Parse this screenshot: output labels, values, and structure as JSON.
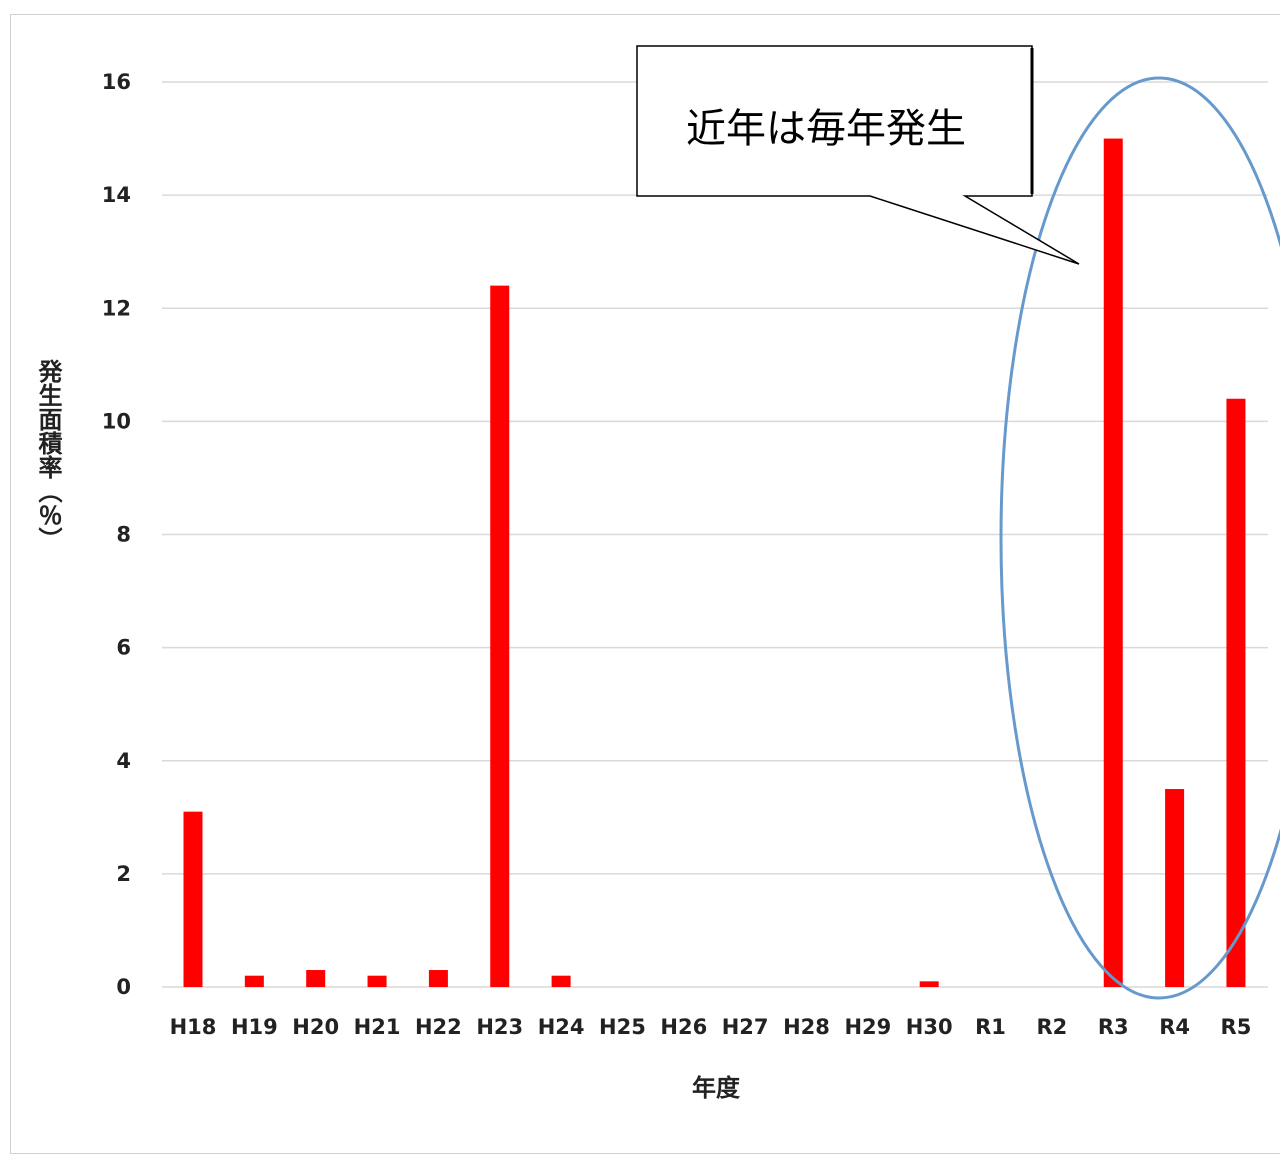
{
  "chart_data": {
    "type": "bar",
    "categories": [
      "H18",
      "H19",
      "H20",
      "H21",
      "H22",
      "H23",
      "H24",
      "H25",
      "H26",
      "H27",
      "H28",
      "H29",
      "H30",
      "R1",
      "R2",
      "R3",
      "R4",
      "R5"
    ],
    "values": [
      3.1,
      0.2,
      0.3,
      0.2,
      0.3,
      12.4,
      0.2,
      0,
      0,
      0,
      0,
      0,
      0.1,
      0,
      0,
      15.0,
      3.5,
      10.4
    ],
    "yticks": [
      0,
      2,
      4,
      6,
      8,
      10,
      12,
      14,
      16
    ],
    "ylim": [
      0,
      16
    ],
    "xlabel": "年度",
    "ylabel": "発生面積率（％）",
    "grid": true,
    "bar_color": "#ff0000",
    "grid_color": "#d9d9d9",
    "annotation": {
      "text": "近年は毎年発生",
      "points_to": "R3"
    },
    "highlight": {
      "shape": "ellipse",
      "categories": [
        "R3",
        "R4",
        "R5"
      ],
      "color": "#6699cc"
    }
  }
}
